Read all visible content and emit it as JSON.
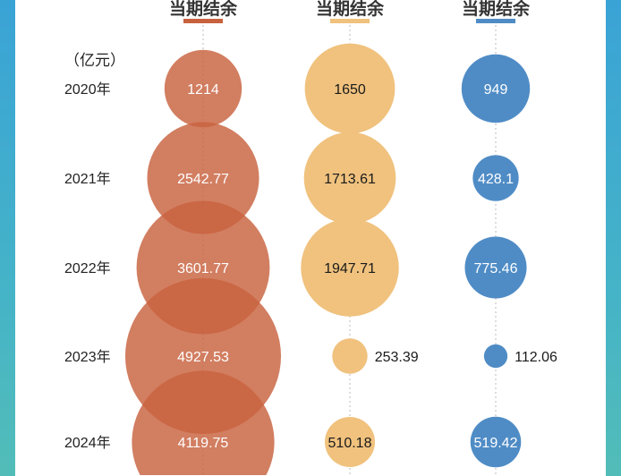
{
  "chart_data": {
    "type": "bubble",
    "unit_label": "（亿元）",
    "categories": [
      "2020年",
      "2021年",
      "2022年",
      "2023年",
      "2024年"
    ],
    "series": [
      {
        "name": "当期结余",
        "color": "#c8623e",
        "label_color": "#ffffff",
        "values": [
          1214,
          2542.77,
          3601.77,
          4927.53,
          4119.75
        ],
        "labels": [
          "1214",
          "2542.77",
          "3601.77",
          "4927.53",
          "4119.75"
        ]
      },
      {
        "name": "当期结余",
        "color": "#f0c27e",
        "label_color": "#1a1a1a",
        "values": [
          1650,
          1713.61,
          1947.71,
          253.39,
          510.18
        ],
        "labels": [
          "1650",
          "1713.61",
          "1947.71",
          "253.39",
          "510.18"
        ]
      },
      {
        "name": "当期结余",
        "color": "#4f8cc6",
        "label_color": "#ffffff",
        "values": [
          949,
          428.1,
          775.46,
          112.06,
          519.42
        ],
        "labels": [
          "949",
          "428.1",
          "775.46",
          "112.06",
          "519.42"
        ]
      }
    ]
  }
}
